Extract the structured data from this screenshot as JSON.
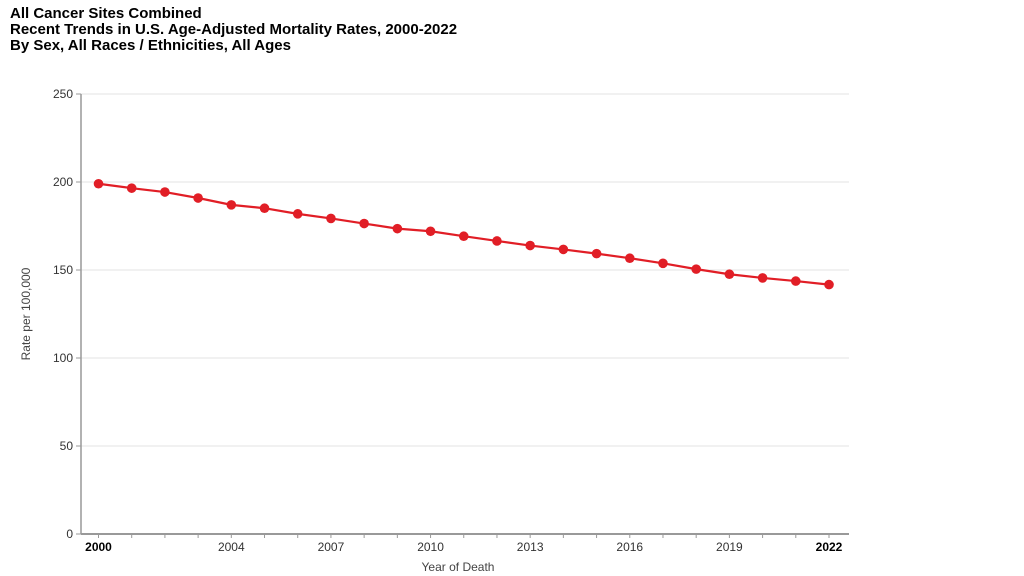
{
  "header": {
    "line1": "All Cancer Sites Combined",
    "line2": "Recent Trends in U.S. Age-Adjusted Mortality Rates, 2000-2022",
    "line3": "By Sex, All Races / Ethnicities, All Ages"
  },
  "chart_data": {
    "type": "line",
    "title": "All Cancer Sites Combined — Recent Trends in U.S. Age-Adjusted Mortality Rates, 2000-2022 — By Sex, All Races / Ethnicities, All Ages",
    "xlabel": "Year of Death",
    "ylabel": "Rate per 100,000",
    "x": [
      2000,
      2001,
      2002,
      2003,
      2004,
      2005,
      2006,
      2007,
      2008,
      2009,
      2010,
      2011,
      2012,
      2013,
      2014,
      2015,
      2016,
      2017,
      2018,
      2019,
      2020,
      2021,
      2022
    ],
    "values": [
      199.0,
      196.5,
      194.3,
      190.9,
      187.0,
      185.1,
      181.9,
      179.3,
      176.4,
      173.5,
      172.0,
      169.2,
      166.5,
      163.9,
      161.7,
      159.3,
      156.7,
      153.8,
      150.5,
      147.6,
      145.5,
      143.7,
      141.7
    ],
    "ylim": [
      0,
      250
    ],
    "yticks": [
      0,
      50,
      100,
      150,
      200,
      250
    ],
    "xtick_labels": [
      "2000",
      "2004",
      "2007",
      "2010",
      "2013",
      "2016",
      "2019",
      "2022"
    ],
    "bold_xtick_labels": [
      "2000",
      "2022"
    ],
    "grid": true,
    "legend": false,
    "line_color": "#e11e26",
    "marker": "circle",
    "grid_color": "#e3e3e3",
    "axis_color": "#999999",
    "tick_text_color": "#333333",
    "axis_title_color": "#444444"
  }
}
